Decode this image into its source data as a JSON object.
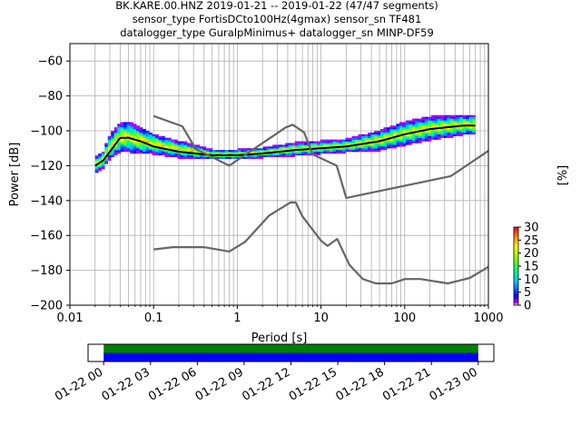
{
  "header": {
    "line1": "BK.KARE.00.HNZ   2019-01-21 -- 2019-01-22  (47/47 segments)",
    "line2": "sensor_type FortisDCto100Hz(4gmax) sensor_sn TF481",
    "line3": "datalogger_type GuralpMinimus+ datalogger_sn MINP-DF59"
  },
  "chart_data": [
    {
      "type": "heatmap",
      "title": "",
      "xlabel": "Period [s]",
      "ylabel": "Power [dB]",
      "xscale": "log",
      "xlim": [
        0.01,
        1000
      ],
      "ylim": [
        -200,
        -50
      ],
      "x_ticks": [
        0.01,
        0.1,
        1,
        10,
        100,
        1000
      ],
      "x_tick_labels": [
        "0.01",
        "0.1",
        "1",
        "10",
        "100",
        "1000"
      ],
      "y_ticks": [
        -60,
        -80,
        -100,
        -120,
        -140,
        -160,
        -180,
        -200
      ],
      "y_tick_labels": [
        "−60",
        "−80",
        "−100",
        "−120",
        "−140",
        "−160",
        "−180",
        "−200"
      ],
      "grid": true,
      "colorbar": {
        "label": "[%]",
        "range": [
          0,
          30
        ],
        "ticks": [
          0,
          5,
          10,
          15,
          20,
          25,
          30
        ],
        "tick_labels": [
          "0",
          "5",
          "10",
          "15",
          "20",
          "25",
          "30"
        ],
        "colormap": "pqlx"
      },
      "series": [
        {
          "style": "mean-line",
          "color": "#000000",
          "x": [
            0.02,
            0.025,
            0.03,
            0.04,
            0.05,
            0.07,
            0.1,
            0.2,
            0.5,
            1,
            2,
            5,
            10,
            20,
            50,
            100,
            200,
            500,
            700
          ],
          "y": [
            -120,
            -117,
            -112,
            -104,
            -104,
            -106,
            -109,
            -112,
            -114,
            -114,
            -113,
            -111,
            -110,
            -109,
            -106,
            -102,
            -99,
            -97,
            -97
          ]
        },
        {
          "style": "noise-model-high",
          "color": "#666666",
          "x": [
            0.1,
            0.22,
            0.32,
            0.8,
            3.8,
            4.6,
            6.3,
            7.9,
            15.4,
            20,
            354.8,
            1000
          ],
          "y": [
            -91.5,
            -97.4,
            -110.5,
            -120,
            -98,
            -96.5,
            -101,
            -113.5,
            -120,
            -138.5,
            -126,
            -111.5
          ]
        },
        {
          "style": "noise-model-low",
          "color": "#666666",
          "x": [
            0.1,
            0.17,
            0.4,
            0.8,
            1.24,
            2.4,
            4.3,
            5.0,
            6.0,
            10.0,
            12.0,
            15.6,
            21.9,
            31.6,
            45,
            70,
            101,
            154,
            328,
            600,
            1000
          ],
          "y": [
            -168,
            -166.7,
            -166.7,
            -169.2,
            -163.7,
            -148.6,
            -141.1,
            -141.1,
            -149,
            -163,
            -166,
            -162,
            -177,
            -185,
            -187.5,
            -187.5,
            -185,
            -185,
            -187.5,
            -184.4,
            -178
          ]
        }
      ],
      "density": [
        {
          "x": 0.02,
          "y_center": -120,
          "spread": 4
        },
        {
          "x": 0.025,
          "y_center": -117,
          "spread": 4
        },
        {
          "x": 0.03,
          "y_center": -110,
          "spread": 6
        },
        {
          "x": 0.04,
          "y_center": -104,
          "spread": 8
        },
        {
          "x": 0.05,
          "y_center": -104,
          "spread": 8
        },
        {
          "x": 0.07,
          "y_center": -106,
          "spread": 7
        },
        {
          "x": 0.1,
          "y_center": -108,
          "spread": 5
        },
        {
          "x": 0.2,
          "y_center": -111,
          "spread": 4
        },
        {
          "x": 0.5,
          "y_center": -114,
          "spread": 2
        },
        {
          "x": 1,
          "y_center": -114,
          "spread": 2
        },
        {
          "x": 2,
          "y_center": -113,
          "spread": 2
        },
        {
          "x": 5,
          "y_center": -111,
          "spread": 3
        },
        {
          "x": 10,
          "y_center": -110,
          "spread": 3
        },
        {
          "x": 20,
          "y_center": -109,
          "spread": 3
        },
        {
          "x": 50,
          "y_center": -106,
          "spread": 5
        },
        {
          "x": 100,
          "y_center": -102,
          "spread": 6
        },
        {
          "x": 200,
          "y_center": -99,
          "spread": 6
        },
        {
          "x": 500,
          "y_center": -97,
          "spread": 5
        },
        {
          "x": 700,
          "y_center": -97,
          "spread": 5
        }
      ]
    },
    {
      "type": "timeline",
      "xlim": [
        "01-21 23:00",
        "01-23 01:00"
      ],
      "x_ticks": [
        "01-22 00",
        "01-22 03",
        "01-22 06",
        "01-22 09",
        "01-22 12",
        "01-22 15",
        "01-22 18",
        "01-22 21",
        "01-23 00"
      ],
      "bars": [
        {
          "label": "",
          "color": "#008000",
          "start": "01-22 00",
          "end": "01-23 00"
        },
        {
          "label": "",
          "color": "#0000ff",
          "start": "01-22 00",
          "end": "01-23 00"
        }
      ]
    }
  ]
}
